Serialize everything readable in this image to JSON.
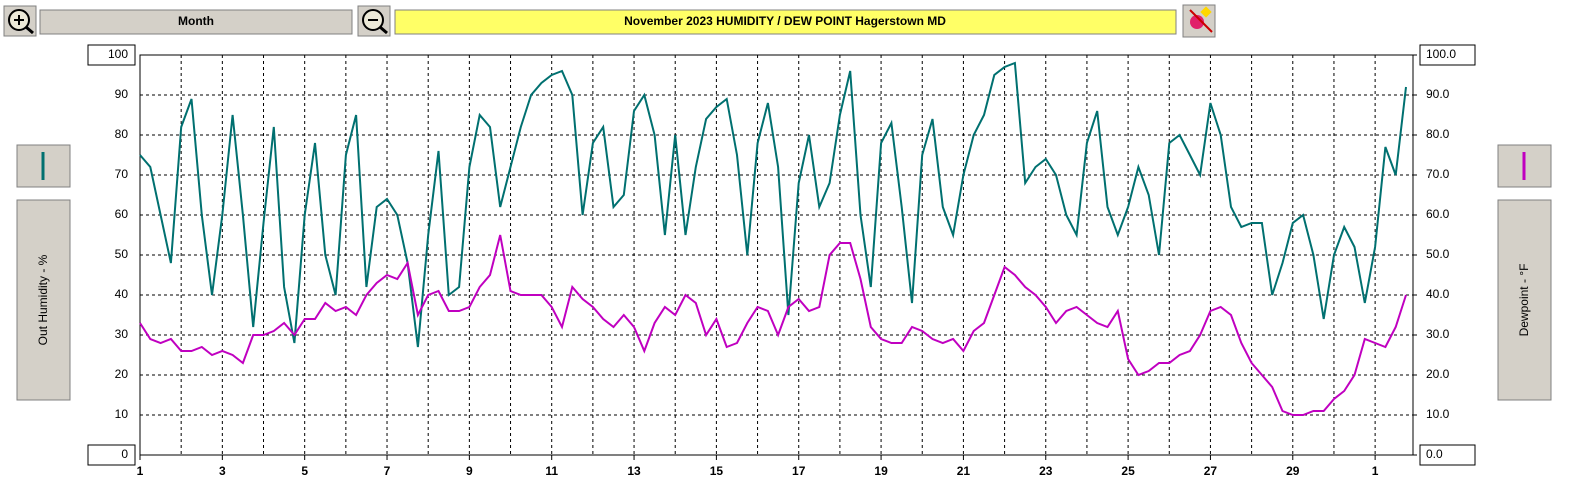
{
  "toolbar": {
    "period": "Month"
  },
  "chart_data": {
    "type": "line",
    "title": "November  2023   HUMIDITY / DEW POINT  Hagerstown MD",
    "ylabel": "Out Humidity - %",
    "y2label": "Dewpoint - °F",
    "x": [
      1,
      1.25,
      1.5,
      1.75,
      2,
      2.25,
      2.5,
      2.75,
      3,
      3.25,
      3.5,
      3.75,
      4,
      4.25,
      4.5,
      4.75,
      5,
      5.25,
      5.5,
      5.75,
      6,
      6.25,
      6.5,
      6.75,
      7,
      7.25,
      7.5,
      7.75,
      8,
      8.25,
      8.5,
      8.75,
      9,
      9.25,
      9.5,
      9.75,
      10,
      10.25,
      10.5,
      10.75,
      11,
      11.25,
      11.5,
      11.75,
      12,
      12.25,
      12.5,
      12.75,
      13,
      13.25,
      13.5,
      13.75,
      14,
      14.25,
      14.5,
      14.75,
      15,
      15.25,
      15.5,
      15.75,
      16,
      16.25,
      16.5,
      16.75,
      17,
      17.25,
      17.5,
      17.75,
      18,
      18.25,
      18.5,
      18.75,
      19,
      19.25,
      19.5,
      19.75,
      20,
      20.25,
      20.5,
      20.75,
      21,
      21.25,
      21.5,
      21.75,
      22,
      22.25,
      22.5,
      22.75,
      23,
      23.25,
      23.5,
      23.75,
      24,
      24.25,
      24.5,
      24.75,
      25,
      25.25,
      25.5,
      25.75,
      26,
      26.25,
      26.5,
      26.75,
      27,
      27.25,
      27.5,
      27.75,
      28,
      28.25,
      28.5,
      28.75,
      29,
      29.25,
      29.5,
      29.75,
      30,
      30.25,
      30.5,
      30.75,
      31,
      31.25,
      31.5,
      31.75
    ],
    "series": [
      {
        "color": "#007070",
        "values": [
          75,
          72,
          60,
          48,
          82,
          89,
          60,
          40,
          60,
          85,
          60,
          32,
          58,
          82,
          42,
          28,
          60,
          78,
          50,
          40,
          75,
          85,
          42,
          62,
          64,
          60,
          48,
          27,
          55,
          76,
          40,
          42,
          72,
          85,
          82,
          62,
          72,
          82,
          90,
          93,
          95,
          96,
          90,
          60,
          78,
          82,
          62,
          65,
          86,
          90,
          80,
          55,
          80,
          55,
          72,
          84,
          87,
          89,
          75,
          50,
          78,
          88,
          72,
          35,
          68,
          80,
          62,
          68,
          85,
          96,
          60,
          42,
          78,
          83,
          62,
          38,
          75,
          84,
          62,
          55,
          70,
          80,
          85,
          95,
          97,
          98,
          68,
          72,
          74,
          70,
          60,
          55,
          78,
          86,
          62,
          55,
          62,
          72,
          65,
          50,
          78,
          80,
          75,
          70,
          88,
          80,
          62,
          57,
          58,
          58,
          40,
          48,
          58,
          60,
          50,
          34,
          50,
          57,
          52,
          38,
          52,
          77,
          70,
          92
        ]
      },
      {
        "color": "#c000c0",
        "axis": "y2",
        "values": [
          33,
          29,
          28,
          29,
          26,
          26,
          27,
          25,
          26,
          25,
          23,
          30,
          30,
          31,
          33,
          30,
          34,
          34,
          38,
          36,
          37,
          35,
          40,
          43,
          45,
          44,
          48,
          35,
          40,
          41,
          36,
          36,
          37,
          42,
          45,
          55,
          41,
          40,
          40,
          40,
          37,
          32,
          42,
          39,
          37,
          34,
          32,
          35,
          32,
          26,
          33,
          37,
          35,
          40,
          38,
          30,
          34,
          27,
          28,
          33,
          37,
          36,
          30,
          37,
          39,
          36,
          37,
          50,
          53,
          53,
          44,
          32,
          29,
          28,
          28,
          32,
          31,
          29,
          28,
          29,
          26,
          31,
          33,
          40,
          47,
          45,
          42,
          40,
          37,
          33,
          36,
          37,
          35,
          33,
          32,
          36,
          24,
          20,
          21,
          23,
          23,
          25,
          26,
          30,
          36,
          37,
          35,
          28,
          23,
          20,
          17,
          11,
          10,
          10,
          11,
          11,
          14,
          16,
          20,
          29,
          28,
          27,
          32,
          40
        ]
      }
    ],
    "xlim": [
      1,
      31.92
    ],
    "xticks": [
      1,
      3,
      5,
      7,
      9,
      11,
      13,
      15,
      17,
      19,
      21,
      23,
      25,
      27,
      29,
      {
        "value": 31,
        "label": "1"
      }
    ],
    "ylim": [
      0,
      100
    ],
    "yticks": [
      0,
      10,
      20,
      30,
      40,
      50,
      60,
      70,
      80,
      90,
      100
    ],
    "y2lim": [
      0,
      100
    ],
    "y2ticks": [
      {
        "value": 0,
        "label": "0.0"
      },
      {
        "value": 10,
        "label": "10.0"
      },
      {
        "value": 20,
        "label": "20.0"
      },
      {
        "value": 30,
        "label": "30.0"
      },
      {
        "value": 40,
        "label": "40.0"
      },
      {
        "value": 50,
        "label": "50.0"
      },
      {
        "value": 60,
        "label": "60.0"
      },
      {
        "value": 70,
        "label": "70.0"
      },
      {
        "value": 80,
        "label": "80.0"
      },
      {
        "value": 90,
        "label": "90.0"
      },
      {
        "value": 100,
        "label": "100.0"
      }
    ],
    "grid": true
  }
}
